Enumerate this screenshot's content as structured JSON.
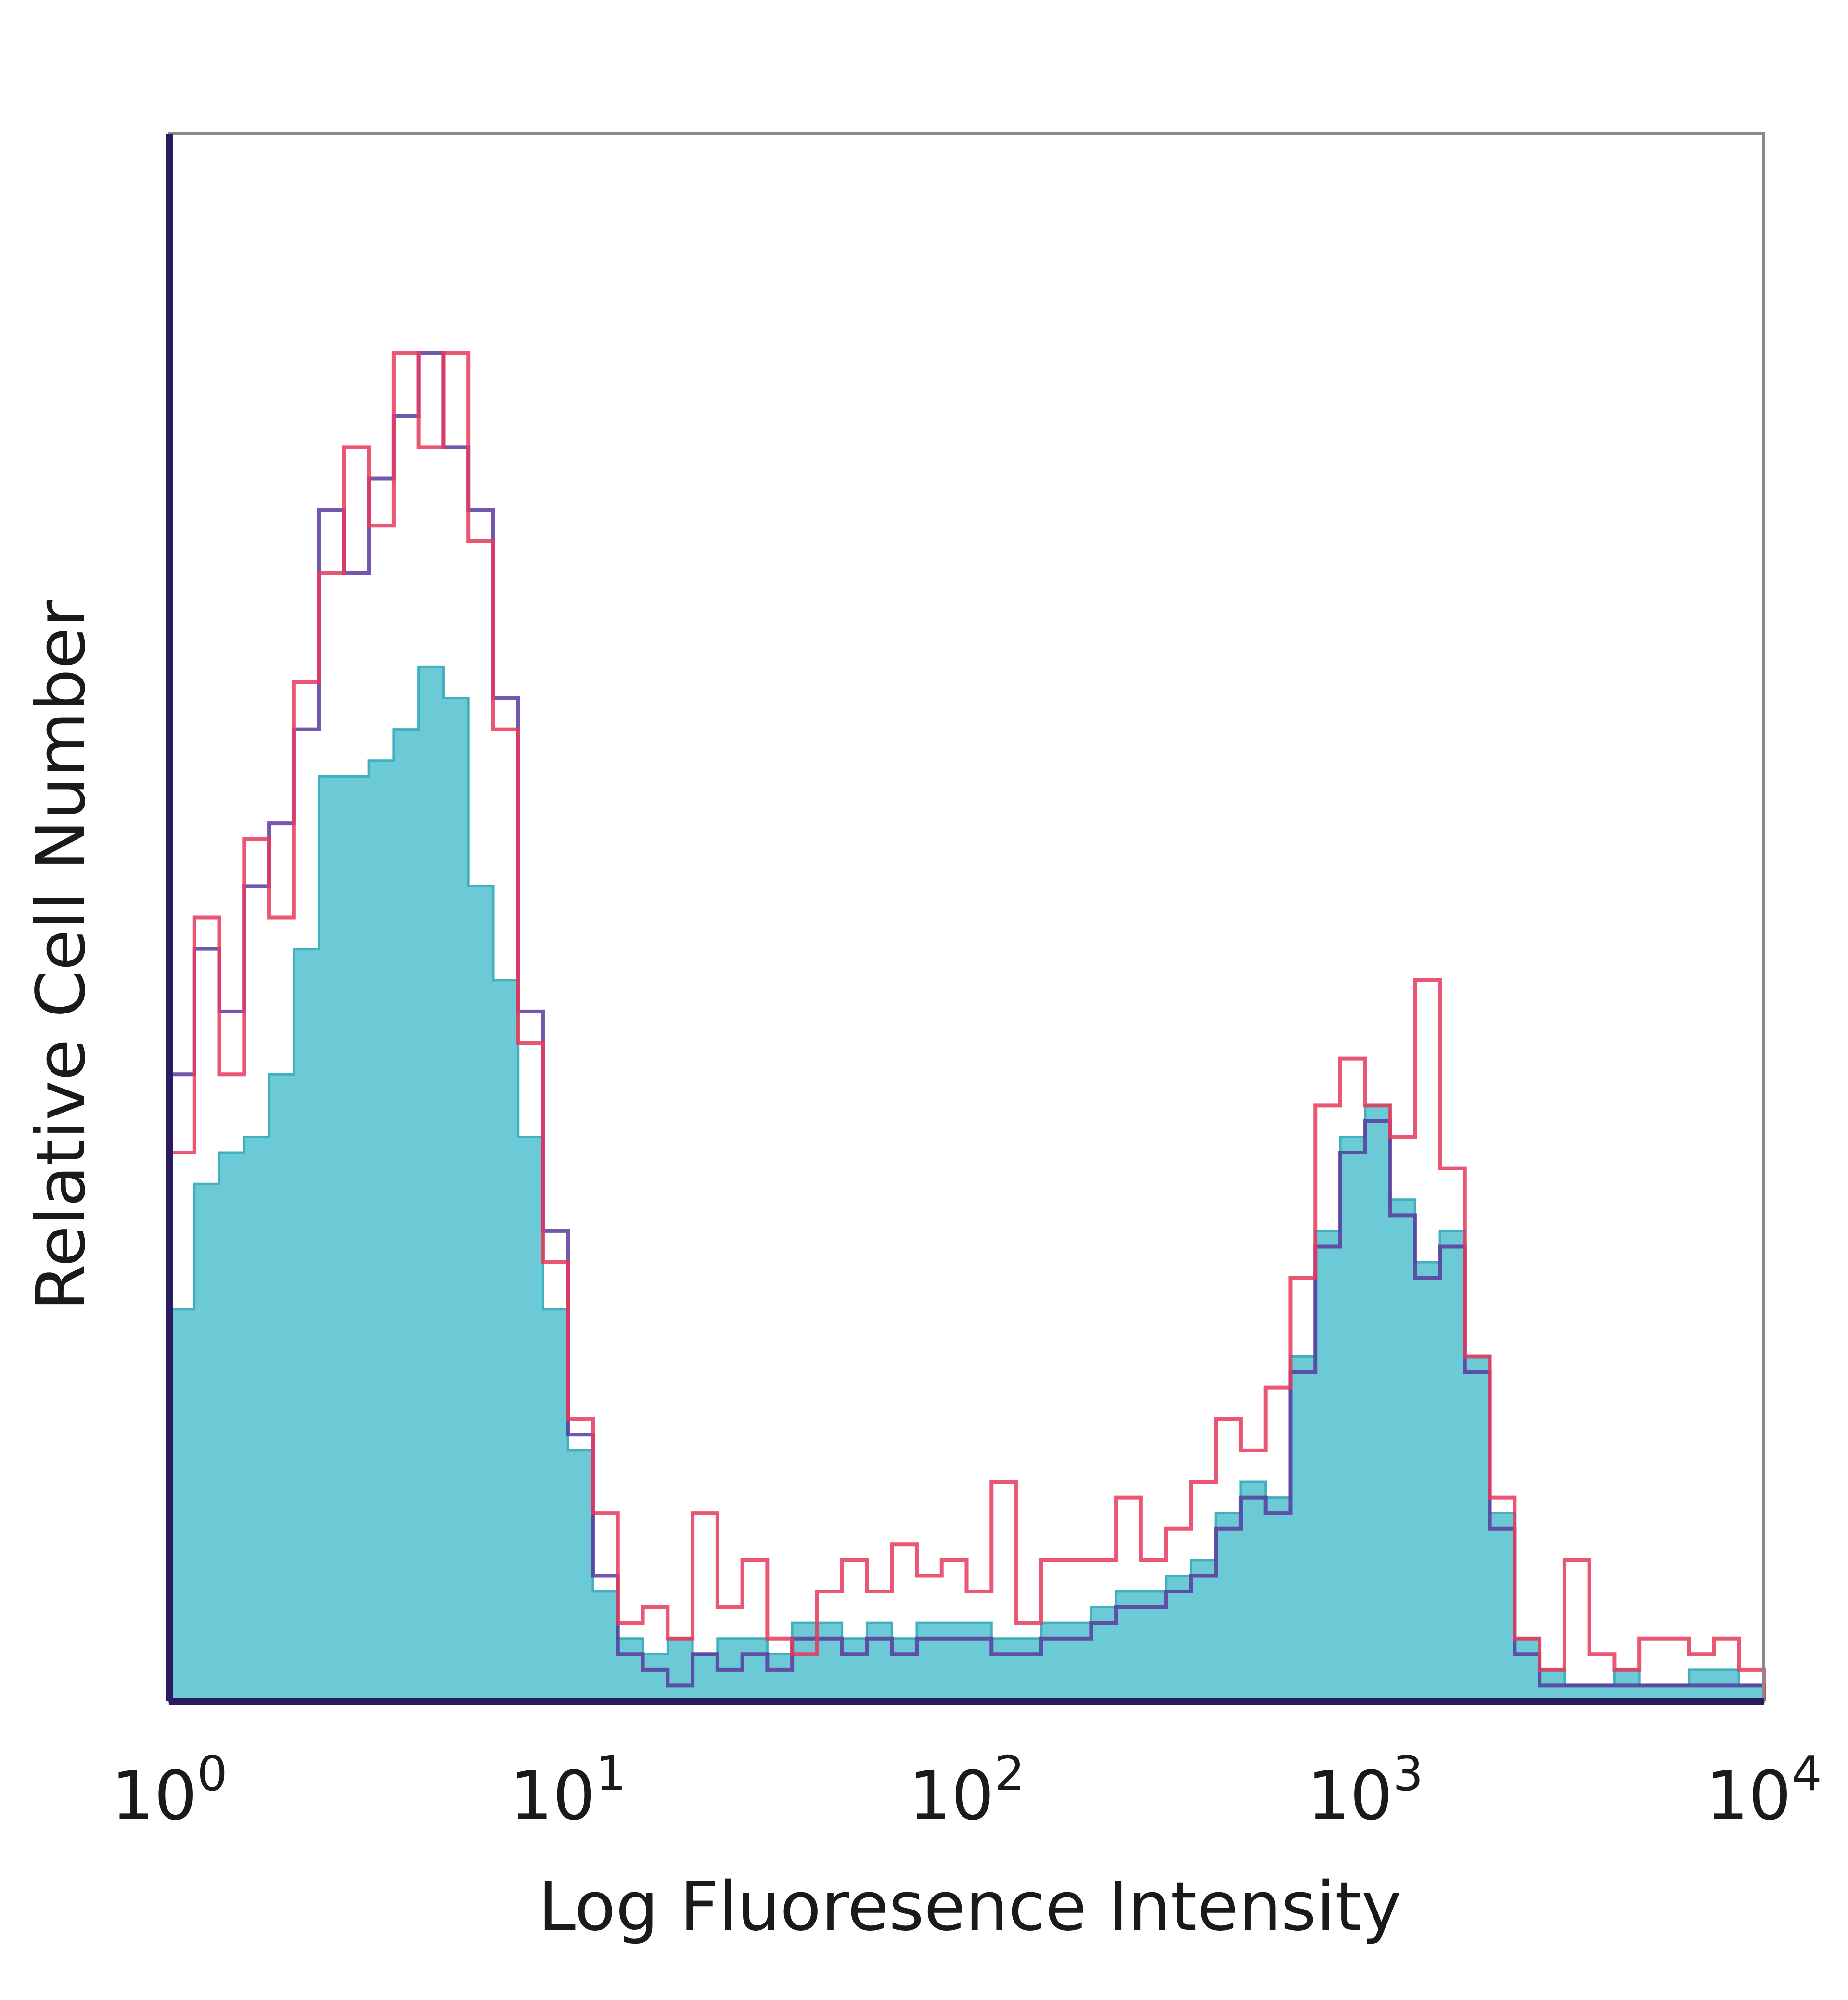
{
  "chart_data": {
    "type": "histogram",
    "xlabel": "Log Fluoresence Intensity",
    "ylabel": "Relative Cell Number",
    "x_scale": "log",
    "xlim": [
      1,
      10000
    ],
    "ylim": [
      0,
      100
    ],
    "grid": false,
    "x_ticks": [
      {
        "base": "10",
        "exp": "0",
        "value": 1
      },
      {
        "base": "10",
        "exp": "1",
        "value": 10
      },
      {
        "base": "10",
        "exp": "2",
        "value": 100
      },
      {
        "base": "10",
        "exp": "3",
        "value": 1000
      },
      {
        "base": "10",
        "exp": "4",
        "value": 10000
      }
    ],
    "bins_per_decade": 16,
    "series": [
      {
        "style": "filled",
        "color": "#6cc9d6",
        "edge": "#3fb0bd",
        "values": [
          25,
          33,
          35,
          36,
          40,
          48,
          59,
          59,
          60,
          62,
          66,
          64,
          52,
          46,
          36,
          25,
          16,
          7,
          4,
          3,
          4,
          3,
          4,
          4,
          3,
          5,
          5,
          4,
          5,
          4,
          5,
          5,
          5,
          4,
          4,
          5,
          5,
          6,
          7,
          7,
          8,
          9,
          12,
          14,
          13,
          22,
          30,
          36,
          38,
          32,
          28,
          30,
          22,
          12,
          4,
          2,
          1,
          1,
          2,
          1,
          1,
          2,
          2,
          1
        ]
      },
      {
        "style": "line",
        "color": "#5a3a9e",
        "values": [
          40,
          48,
          44,
          52,
          56,
          62,
          76,
          72,
          78,
          82,
          86,
          80,
          76,
          64,
          44,
          30,
          17,
          8,
          3,
          2,
          1,
          3,
          2,
          3,
          2,
          4,
          4,
          3,
          4,
          3,
          4,
          4,
          4,
          3,
          3,
          4,
          4,
          5,
          6,
          6,
          7,
          8,
          11,
          13,
          12,
          21,
          29,
          35,
          37,
          31,
          27,
          29,
          21,
          11,
          3,
          1,
          1,
          1,
          1,
          1,
          1,
          1,
          1,
          1
        ]
      },
      {
        "style": "line",
        "color": "#e8385a",
        "values": [
          35,
          50,
          40,
          55,
          50,
          65,
          72,
          80,
          75,
          86,
          80,
          86,
          74,
          62,
          42,
          28,
          18,
          12,
          5,
          6,
          4,
          12,
          6,
          9,
          4,
          3,
          7,
          9,
          7,
          10,
          8,
          9,
          7,
          14,
          5,
          9,
          9,
          9,
          13,
          9,
          11,
          14,
          18,
          16,
          20,
          27,
          38,
          41,
          38,
          36,
          46,
          34,
          22,
          13,
          4,
          2,
          9,
          3,
          2,
          4,
          4,
          3,
          4,
          2
        ]
      }
    ]
  }
}
